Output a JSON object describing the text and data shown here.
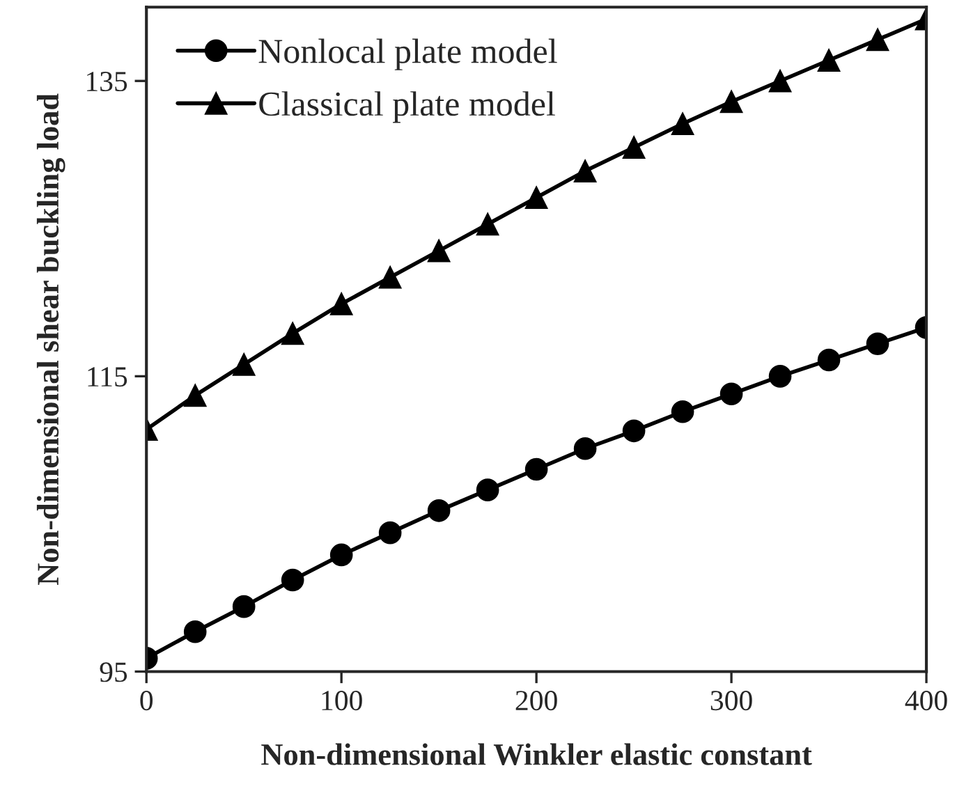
{
  "chart_data": {
    "type": "line",
    "xlabel": "Non-dimensional Winkler elastic constant",
    "ylabel": "Non-dimensional shear buckling load",
    "x": [
      0,
      25,
      50,
      75,
      100,
      125,
      150,
      175,
      200,
      225,
      250,
      275,
      300,
      325,
      350,
      375,
      400
    ],
    "series": [
      {
        "name": "Nonlocal plate model",
        "color": "#000000",
        "marker": "circle",
        "values": [
          95.9,
          97.7,
          99.4,
          101.2,
          102.9,
          104.4,
          105.9,
          107.3,
          108.7,
          110.1,
          111.3,
          112.6,
          113.8,
          115.0,
          116.1,
          117.2,
          118.3
        ]
      },
      {
        "name": "Classical plate model",
        "color": "#000000",
        "marker": "triangle",
        "values": [
          111.4,
          113.7,
          115.8,
          117.9,
          119.9,
          121.7,
          123.5,
          125.3,
          127.1,
          128.9,
          130.5,
          132.1,
          133.6,
          135.0,
          136.4,
          137.8,
          139.2
        ]
      }
    ],
    "xlim": [
      0,
      400
    ],
    "xticks": [
      0,
      100,
      200,
      300,
      400
    ],
    "ylim": [
      95,
      140
    ],
    "yticks": [
      95,
      115,
      135
    ],
    "grid": false,
    "legend": "top left",
    "line_style": "solid"
  }
}
